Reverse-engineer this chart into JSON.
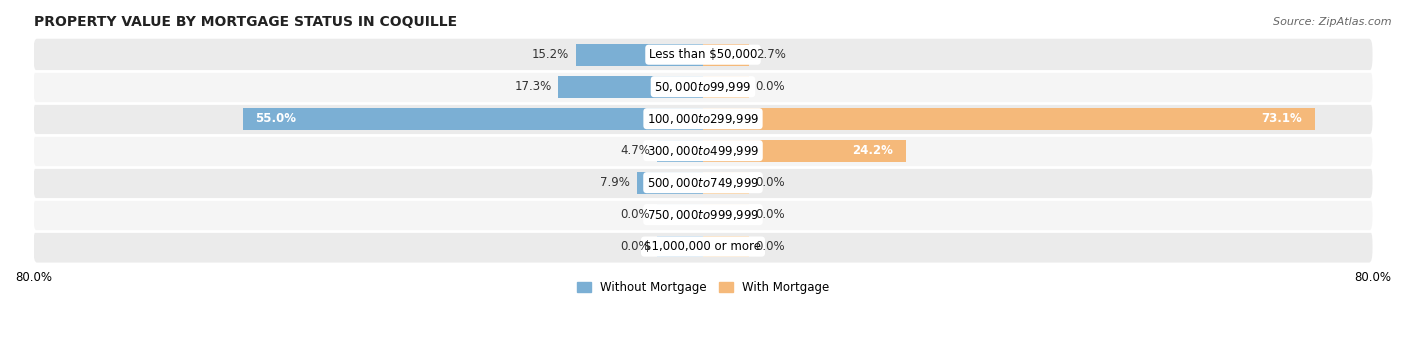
{
  "title": "PROPERTY VALUE BY MORTGAGE STATUS IN COQUILLE",
  "source": "Source: ZipAtlas.com",
  "categories": [
    "Less than $50,000",
    "$50,000 to $99,999",
    "$100,000 to $299,999",
    "$300,000 to $499,999",
    "$500,000 to $749,999",
    "$750,000 to $999,999",
    "$1,000,000 or more"
  ],
  "without_mortgage": [
    15.2,
    17.3,
    55.0,
    4.7,
    7.9,
    0.0,
    0.0
  ],
  "with_mortgage": [
    2.7,
    0.0,
    73.1,
    24.2,
    0.0,
    0.0,
    0.0
  ],
  "without_mortgage_color": "#7bafd4",
  "with_mortgage_color": "#f5b97a",
  "without_mortgage_color_faint": "#b8d4ea",
  "with_mortgage_color_faint": "#f9d4a8",
  "xlim": 80.0,
  "min_bar_width": 5.5,
  "legend_labels": [
    "Without Mortgage",
    "With Mortgage"
  ],
  "title_fontsize": 10,
  "source_fontsize": 8,
  "label_fontsize": 8.5,
  "axis_fontsize": 8.5,
  "row_bg_even": "#ebebeb",
  "row_bg_odd": "#f5f5f5"
}
